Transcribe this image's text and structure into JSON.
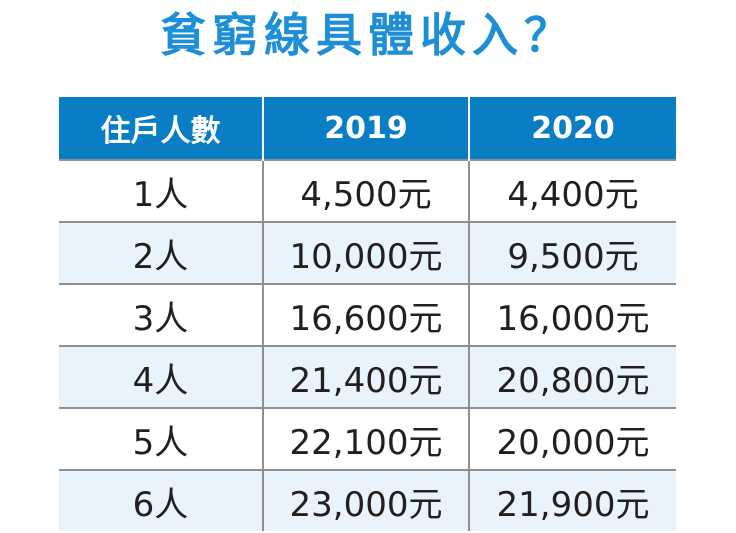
{
  "title": "貧窮線具體收入？",
  "chart_data": {
    "type": "table",
    "title": "貧窮線具體收入？",
    "columns": [
      "住戶人數",
      "2019",
      "2020"
    ],
    "rows": [
      [
        "1人",
        "4,500元",
        "4,400元"
      ],
      [
        "2人",
        "10,000元",
        "9,500元"
      ],
      [
        "3人",
        "16,600元",
        "16,000元"
      ],
      [
        "4人",
        "21,400元",
        "20,800元"
      ],
      [
        "5人",
        "22,100元",
        "20,000元"
      ],
      [
        "6人",
        "23,000元",
        "21,900元"
      ]
    ],
    "series": [
      {
        "name": "2019",
        "values": [
          4500,
          10000,
          16600,
          21400,
          22100,
          23000
        ]
      },
      {
        "name": "2020",
        "values": [
          4400,
          9500,
          16000,
          20800,
          20000,
          21900
        ]
      }
    ],
    "categories": [
      "1人",
      "2人",
      "3人",
      "4人",
      "5人",
      "6人"
    ],
    "unit": "元"
  },
  "colors": {
    "title": "#1e8fd6",
    "header_bg": "#0a7ec4",
    "header_text": "#ffffff",
    "stripe": "#e9f3fb",
    "cell_text": "#231f20",
    "grid": "#8f8f8f"
  }
}
